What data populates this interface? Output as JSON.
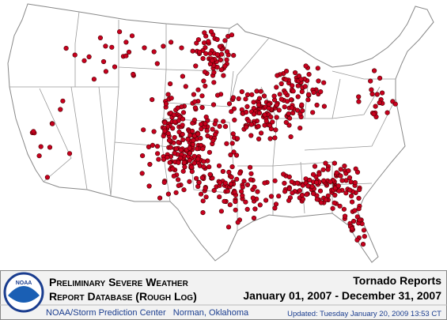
{
  "header": {
    "title_line1": "Preliminary Severe Weather",
    "title_line2": "Report Database (Rough Log)",
    "logo": "NOAA",
    "report_type": "Tornado Reports",
    "date_range": "January 01, 2007 - December 31, 2007",
    "source": "NOAA/Storm Prediction Center   Norman, Oklahoma",
    "updated": "Updated: Tuesday January 20, 2009 13:53 CT"
  }
}
